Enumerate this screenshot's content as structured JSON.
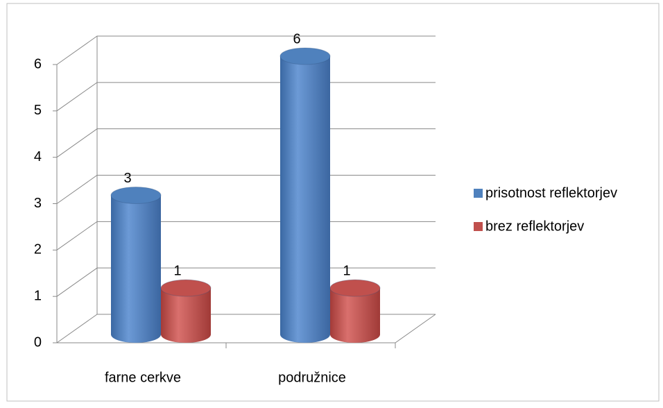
{
  "chart_data": {
    "type": "bar3d",
    "categories": [
      "farne cerkve",
      "podružnice"
    ],
    "series": [
      {
        "name": "prisotnost reflektorjev",
        "color": "#4f81bd",
        "values": [
          3,
          6
        ]
      },
      {
        "name": "brez reflektorjev",
        "color": "#c0504d",
        "values": [
          1,
          1
        ]
      }
    ],
    "ylim": [
      0,
      6
    ],
    "yticks": [
      0,
      1,
      2,
      3,
      4,
      5,
      6
    ],
    "grid": true,
    "legend": "right"
  }
}
